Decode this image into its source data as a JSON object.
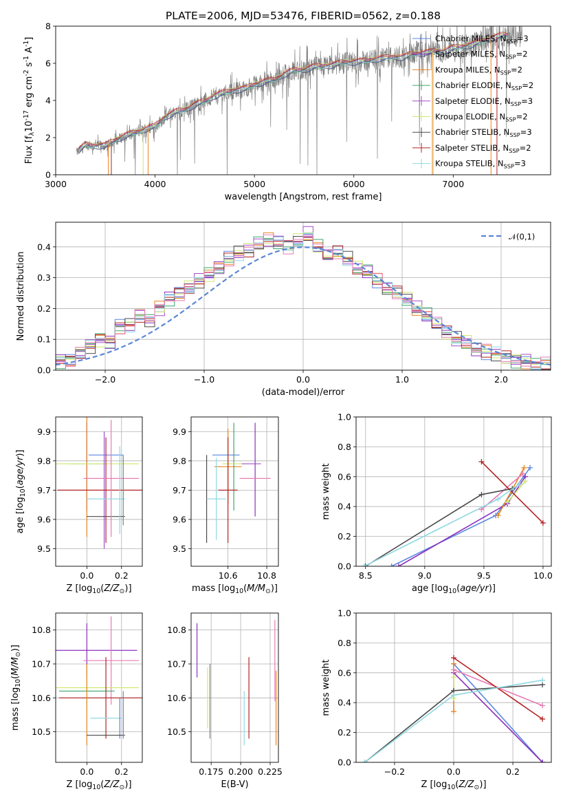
{
  "chart_data": [
    {
      "type": "line",
      "title": "PLATE=2006, MJD=53476, FIBERID=0562, z=0.188",
      "xlabel": "wavelength [Angstrom, rest frame]",
      "ylabel": "Flux [f$_\\lambda$10$^{-17}$ erg cm$^{-2}$ s$^{-1}$ A$^{-1}$]",
      "xlim": [
        3000,
        7980
      ],
      "ylim": [
        0,
        8
      ],
      "xticks": [
        3000,
        4000,
        5000,
        6000,
        7000
      ],
      "yticks": [
        0,
        2,
        4,
        6,
        8
      ],
      "grid": false,
      "legend_position": "top-right",
      "observed_spectrum": {
        "color": "#808080",
        "wavelength": [
          3210,
          3300,
          3400,
          3500,
          3600,
          3700,
          3800,
          3900,
          4000,
          4100,
          4200,
          4300,
          4400,
          4500,
          4600,
          4700,
          4800,
          4900,
          5000,
          5100,
          5200,
          5300,
          5400,
          5500,
          5600,
          5700,
          5800,
          5900,
          6000,
          6100,
          6200,
          6300,
          6400,
          6500,
          6600,
          6700,
          6800,
          6900,
          7000,
          7100,
          7200,
          7300,
          7400,
          7500,
          7600,
          7700
        ],
        "flux": [
          1.2,
          1.6,
          1.55,
          1.55,
          1.85,
          2.1,
          2.25,
          2.45,
          2.6,
          3.1,
          3.35,
          3.5,
          3.75,
          3.95,
          4.25,
          4.4,
          4.55,
          4.6,
          4.85,
          5.0,
          5.1,
          5.4,
          5.6,
          5.65,
          5.8,
          5.85,
          5.9,
          6.05,
          6.05,
          6.1,
          6.2,
          6.25,
          6.35,
          6.3,
          6.5,
          6.55,
          6.6,
          6.65,
          6.8,
          6.9,
          7.0,
          7.2,
          7.35,
          7.5,
          7.55,
          7.5
        ]
      },
      "series": [
        {
          "name": "Chabrier MILES, N$_{SSP}$=3",
          "color": "#5b86e0"
        },
        {
          "name": "Salpeter MILES, N$_{SSP}$=2",
          "color": "#8a2fbe"
        },
        {
          "name": "Kroupa MILES, N$_{SSP}$=2",
          "color": "#e8841c"
        },
        {
          "name": "Chabrier ELODIE, N$_{SSP}$=2",
          "color": "#3aa66a"
        },
        {
          "name": "Salpeter ELODIE, N$_{SSP}$=3",
          "color": "#a64cc8"
        },
        {
          "name": "Kroupa ELODIE, N$_{SSP}$=2",
          "color": "#cde86e"
        },
        {
          "name": "Chabrier STELIB, N$_{SSP}$=3",
          "color": "#4a4a4a"
        },
        {
          "name": "Salpeter STELIB, N$_{SSP}$=2",
          "color": "#b22222"
        },
        {
          "name": "Kroupa STELIB, N$_{SSP}$=3",
          "color": "#8fd8e0"
        }
      ]
    },
    {
      "type": "line",
      "xlabel": "(data-model)/error",
      "ylabel": "Normed distribution",
      "xlim": [
        -2.5,
        2.5
      ],
      "ylim": [
        0,
        0.48
      ],
      "xticks": [
        -2,
        -1,
        0,
        1,
        2
      ],
      "yticks": [
        0.0,
        0.1,
        0.2,
        0.3,
        0.4
      ],
      "grid": true,
      "legend_position": "top-right",
      "normal_curve": {
        "name": "$\\mathcal{N}(0,1)$",
        "color": "#5b86d6",
        "style": "dashed"
      },
      "histogram_bin_edges": [
        -2.5,
        -2.4,
        -2.3,
        -2.2,
        -2.1,
        -2.0,
        -1.9,
        -1.8,
        -1.7,
        -1.6,
        -1.5,
        -1.4,
        -1.3,
        -1.2,
        -1.1,
        -1.0,
        -0.9,
        -0.8,
        -0.7,
        -0.6,
        -0.5,
        -0.4,
        -0.3,
        -0.2,
        -0.1,
        0.0,
        0.1,
        0.2,
        0.3,
        0.4,
        0.5,
        0.6,
        0.7,
        0.8,
        0.9,
        1.0,
        1.1,
        1.2,
        1.3,
        1.4,
        1.5,
        1.6,
        1.7,
        1.8,
        1.9,
        2.0,
        2.1,
        2.2,
        2.3,
        2.4,
        2.5
      ],
      "histogram_values": [
        0.03,
        0.035,
        0.06,
        0.08,
        0.1,
        0.09,
        0.14,
        0.15,
        0.18,
        0.16,
        0.2,
        0.23,
        0.25,
        0.27,
        0.29,
        0.31,
        0.33,
        0.36,
        0.38,
        0.39,
        0.41,
        0.42,
        0.41,
        0.4,
        0.42,
        0.44,
        0.4,
        0.37,
        0.38,
        0.36,
        0.33,
        0.32,
        0.29,
        0.26,
        0.25,
        0.23,
        0.2,
        0.18,
        0.15,
        0.12,
        0.1,
        0.09,
        0.07,
        0.06,
        0.05,
        0.04,
        0.03,
        0.03,
        0.02,
        0.02
      ]
    },
    {
      "type": "scatter",
      "xlabel": "Z [log$_{10}$($Z/Z_\\odot$)]",
      "ylabel": "age  [log$_{10}$($age/yr$)]",
      "xlim": [
        -0.18,
        0.32
      ],
      "ylim": [
        9.44,
        9.95
      ],
      "xticks": [
        0.0,
        0.2
      ],
      "yticks": [
        9.5,
        9.6,
        9.7,
        9.8,
        9.9
      ],
      "grid": true,
      "crosses": [
        {
          "color": "#5b86e0",
          "x": 0.11,
          "xerr": 0.1,
          "y": 9.82,
          "yerr": 0.0
        },
        {
          "color": "#8a2fbe",
          "x": 0.0,
          "xerr": 0.0,
          "y": 9.78,
          "yerr": 0.15
        },
        {
          "color": "#e8841c",
          "x": 0.0,
          "xerr": 0.0,
          "y": 9.77,
          "yerr": 0.23
        },
        {
          "color": "#3aa66a",
          "x": 0.0,
          "xerr": 0.1,
          "y": 9.79,
          "yerr": 0.0
        },
        {
          "color": "#cde86e",
          "x": 0.0,
          "xerr": 0.3,
          "y": 9.79,
          "yerr": 0.0
        },
        {
          "color": "#a64cc8",
          "x": 0.1,
          "xerr": 0.0,
          "y": 9.7,
          "yerr": 0.2
        },
        {
          "color": "#4a4a4a",
          "x": 0.11,
          "xerr": 0.11,
          "y": 9.61,
          "yerr": 0.0
        },
        {
          "color": "#b22222",
          "x": 0.11,
          "xerr": 0.28,
          "y": 9.7,
          "yerr": 0.18
        },
        {
          "color": "#e87ab4",
          "x": 0.14,
          "xerr": 0.16,
          "y": 9.74,
          "yerr": 0.2
        },
        {
          "color": "#8fd8e0",
          "x": 0.11,
          "xerr": 0.11,
          "y": 9.67,
          "yerr": 0.0
        },
        {
          "color": "#8fd8e0",
          "x": 0.19,
          "xerr": 0.0,
          "y": 9.7,
          "yerr": 0.15
        },
        {
          "color": "#808080",
          "x": 0.21,
          "xerr": 0.0,
          "y": 9.7,
          "yerr": 0.12
        }
      ]
    },
    {
      "type": "scatter",
      "xlabel": "mass [log$_{10}$($M/M_\\odot$)]",
      "xlim": [
        10.41,
        10.86
      ],
      "ylim": [
        9.44,
        9.95
      ],
      "xticks": [
        10.6,
        10.8
      ],
      "yticks": [
        9.5,
        9.6,
        9.7,
        9.8,
        9.9
      ],
      "grid": true,
      "crosses": [
        {
          "color": "#5b86e0",
          "x": 10.59,
          "xerr": 0.07,
          "y": 9.82,
          "yerr": 0.0
        },
        {
          "color": "#8a2fbe",
          "x": 10.74,
          "xerr": 0.0,
          "y": 9.77,
          "yerr": 0.16
        },
        {
          "color": "#e8841c",
          "x": 10.6,
          "xerr": 0.07,
          "y": 9.78,
          "yerr": 0.13
        },
        {
          "color": "#3aa66a",
          "x": 10.63,
          "xerr": 0.0,
          "y": 9.78,
          "yerr": 0.15
        },
        {
          "color": "#cde86e",
          "x": 10.62,
          "xerr": 0.05,
          "y": 9.79,
          "yerr": 0.0
        },
        {
          "color": "#a64cc8",
          "x": 10.72,
          "xerr": 0.05,
          "y": 9.79,
          "yerr": 0.0
        },
        {
          "color": "#4a4a4a",
          "x": 10.47,
          "xerr": 0.0,
          "y": 9.61,
          "yerr": 0.0
        },
        {
          "color": "#4a4a4a",
          "x": 10.49,
          "xerr": 0.0,
          "y": 9.67,
          "yerr": 0.15
        },
        {
          "color": "#b22222",
          "x": 10.6,
          "xerr": 0.05,
          "y": 9.7,
          "yerr": 0.18
        },
        {
          "color": "#e87ab4",
          "x": 10.74,
          "xerr": 0.08,
          "y": 9.74,
          "yerr": 0.0
        },
        {
          "color": "#8fd8e0",
          "x": 10.54,
          "xerr": 0.05,
          "y": 9.67,
          "yerr": 0.14
        }
      ]
    },
    {
      "type": "line",
      "xlabel": "age  [log$_{10}$($age/yr$)]",
      "ylabel": "mass weight",
      "xlim": [
        8.42,
        10.07
      ],
      "ylim": [
        0,
        1
      ],
      "xticks": [
        8.5,
        9.0,
        9.5,
        10.0
      ],
      "yticks": [
        0.0,
        0.2,
        0.4,
        0.6,
        0.8,
        1.0
      ],
      "grid": true,
      "series": [
        {
          "color": "#5b86e0",
          "x": [
            8.72,
            9.6,
            9.89
          ],
          "y": [
            0.0,
            0.34,
            0.66
          ]
        },
        {
          "color": "#8a2fbe",
          "x": [
            8.78,
            9.7,
            9.85
          ],
          "y": [
            0.0,
            0.42,
            0.6
          ]
        },
        {
          "color": "#e8841c",
          "x": [
            9.62,
            9.84
          ],
          "y": [
            0.34,
            0.66
          ]
        },
        {
          "color": "#cde86e",
          "x": [
            9.7,
            9.85
          ],
          "y": [
            0.43,
            0.57
          ]
        },
        {
          "color": "#e87ab4",
          "x": [
            9.48,
            9.83
          ],
          "y": [
            0.38,
            0.62
          ]
        },
        {
          "color": "#4a4a4a",
          "x": [
            8.5,
            9.48,
            9.74
          ],
          "y": [
            0.0,
            0.48,
            0.52
          ]
        },
        {
          "color": "#b22222",
          "x": [
            9.48,
            10.0
          ],
          "y": [
            0.7,
            0.29
          ]
        },
        {
          "color": "#8fd8e0",
          "x": [
            8.49,
            9.62,
            9.8
          ],
          "y": [
            0.0,
            0.45,
            0.55
          ]
        }
      ]
    },
    {
      "type": "scatter",
      "xlabel": "Z [log$_{10}$($Z/Z_\\odot$)]",
      "ylabel": "mass [log$_{10}$($M/M_\\odot$)]",
      "xlim": [
        -0.18,
        0.32
      ],
      "ylim": [
        10.41,
        10.85
      ],
      "xticks": [
        0.0,
        0.2
      ],
      "yticks": [
        10.5,
        10.6,
        10.7,
        10.8
      ],
      "grid": true,
      "crosses": [
        {
          "color": "#8a2fbe",
          "x": 0.0,
          "xerr": 0.29,
          "y": 10.74,
          "yerr": 0.08
        },
        {
          "color": "#e87ab4",
          "x": 0.14,
          "xerr": 0.16,
          "y": 10.71,
          "yerr": 0.13
        },
        {
          "color": "#cde86e",
          "x": 0.0,
          "xerr": 0.3,
          "y": 10.63,
          "yerr": 0.07
        },
        {
          "color": "#3aa66a",
          "x": 0.0,
          "xerr": 0.16,
          "y": 10.62,
          "yerr": 0.0
        },
        {
          "color": "#b22222",
          "x": 0.11,
          "xerr": 0.27,
          "y": 10.6,
          "yerr": 0.12
        },
        {
          "color": "#e8841c",
          "x": 0.0,
          "xerr": 0.0,
          "y": 10.58,
          "yerr": 0.12
        },
        {
          "color": "#8fd8e0",
          "x": 0.11,
          "xerr": 0.09,
          "y": 10.54,
          "yerr": 0.0
        },
        {
          "color": "#5b86e0",
          "x": 0.19,
          "xerr": 0.0,
          "y": 10.54,
          "yerr": 0.06
        },
        {
          "color": "#4a4a4a",
          "x": 0.11,
          "xerr": 0.11,
          "y": 10.49,
          "yerr": 0.0
        },
        {
          "color": "#808080",
          "x": 0.21,
          "xerr": 0.0,
          "y": 10.55,
          "yerr": 0.07
        }
      ]
    },
    {
      "type": "scatter",
      "xlabel": "E(B-V)",
      "xlim": [
        0.158,
        0.232
      ],
      "ylim": [
        10.41,
        10.85
      ],
      "xticks": [
        0.175,
        0.2,
        0.225
      ],
      "yticks": [
        10.5,
        10.6,
        10.7,
        10.8
      ],
      "grid": true,
      "crosses": [
        {
          "color": "#8a2fbe",
          "x": 0.163,
          "xerr": 0.0,
          "y": 10.74,
          "yerr": 0.08
        },
        {
          "color": "#cde86e",
          "x": 0.172,
          "xerr": 0.0,
          "y": 10.6,
          "yerr": 0.09
        },
        {
          "color": "#808080",
          "x": 0.174,
          "xerr": 0.0,
          "y": 10.59,
          "yerr": 0.11
        },
        {
          "color": "#8fd8e0",
          "x": 0.203,
          "xerr": 0.0,
          "y": 10.54,
          "yerr": 0.08
        },
        {
          "color": "#b22222",
          "x": 0.207,
          "xerr": 0.0,
          "y": 10.6,
          "yerr": 0.12
        },
        {
          "color": "#e87ab4",
          "x": 0.229,
          "xerr": 0.0,
          "y": 10.71,
          "yerr": 0.12
        },
        {
          "color": "#e8841c",
          "x": 0.23,
          "xerr": 0.0,
          "y": 10.57,
          "yerr": 0.11
        }
      ]
    },
    {
      "type": "line",
      "xlabel": "Z [log$_{10}$($Z/Z_\\odot$)]",
      "ylabel": "mass weight",
      "xlim": [
        -0.33,
        0.33
      ],
      "ylim": [
        0,
        1
      ],
      "xticks": [
        -0.2,
        0.0,
        0.2
      ],
      "yticks": [
        0.0,
        0.2,
        0.4,
        0.6,
        0.8,
        1.0
      ],
      "grid": true,
      "series": [
        {
          "color": "#5b86e0",
          "x": [
            0.0,
            0.3
          ],
          "y": [
            0.66,
            0.0
          ]
        },
        {
          "color": "#8a2fbe",
          "x": [
            0.0,
            0.3
          ],
          "y": [
            0.6,
            0.0
          ]
        },
        {
          "color": "#e8841c",
          "x": [
            0.0,
            0.0
          ],
          "y": [
            0.34,
            0.66
          ]
        },
        {
          "color": "#cde86e",
          "x": [
            0.0,
            0.0
          ],
          "y": [
            0.43,
            0.57
          ]
        },
        {
          "color": "#e87ab4",
          "x": [
            0.0,
            0.3
          ],
          "y": [
            0.62,
            0.38
          ]
        },
        {
          "color": "#4a4a4a",
          "x": [
            -0.3,
            0.0,
            0.3
          ],
          "y": [
            0.0,
            0.48,
            0.52
          ]
        },
        {
          "color": "#b22222",
          "x": [
            0.0,
            0.3
          ],
          "y": [
            0.7,
            0.29
          ]
        },
        {
          "color": "#8fd8e0",
          "x": [
            -0.3,
            0.0,
            0.3
          ],
          "y": [
            0.0,
            0.45,
            0.55
          ]
        }
      ]
    }
  ]
}
